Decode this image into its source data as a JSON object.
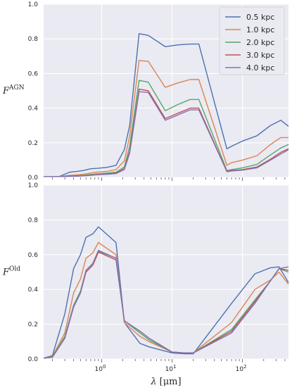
{
  "chart_data": [
    {
      "type": "line",
      "ylabel": "F",
      "ylabel_sup": "AGN",
      "xscale": "log",
      "xlim": [
        0.15,
        450
      ],
      "ylim": [
        0,
        1.0
      ],
      "yticks": [
        "0.0",
        "0.2",
        "0.4",
        "0.6",
        "0.8",
        "1.0"
      ],
      "grid": true,
      "legend_position": "top-right",
      "x": [
        0.15,
        0.2,
        0.25,
        0.35,
        0.45,
        0.55,
        0.7,
        0.85,
        1.2,
        1.6,
        2.1,
        2.5,
        3.4,
        4.6,
        8,
        12,
        18,
        24,
        60,
        70,
        100,
        160,
        250,
        350,
        450
      ],
      "series": [
        {
          "name": "0.5 kpc",
          "color": "#4c72b0",
          "values": [
            0.005,
            0.005,
            0.005,
            0.03,
            0.035,
            0.04,
            0.05,
            0.052,
            0.058,
            0.07,
            0.16,
            0.3,
            0.83,
            0.82,
            0.755,
            0.765,
            0.77,
            0.77,
            0.165,
            0.18,
            0.21,
            0.24,
            0.3,
            0.33,
            0.295
          ]
        },
        {
          "name": "1.0 kpc",
          "color": "#dd8452",
          "values": [
            0.005,
            0.005,
            0.005,
            0.012,
            0.015,
            0.018,
            0.025,
            0.03,
            0.035,
            0.045,
            0.095,
            0.24,
            0.675,
            0.67,
            0.52,
            0.545,
            0.565,
            0.565,
            0.07,
            0.085,
            0.1,
            0.125,
            0.19,
            0.23,
            0.23
          ]
        },
        {
          "name": "2.0 kpc",
          "color": "#55a868",
          "values": [
            0.005,
            0.005,
            0.005,
            0.008,
            0.01,
            0.012,
            0.017,
            0.02,
            0.025,
            0.03,
            0.06,
            0.18,
            0.56,
            0.55,
            0.385,
            0.42,
            0.45,
            0.45,
            0.04,
            0.045,
            0.055,
            0.075,
            0.13,
            0.17,
            0.19
          ]
        },
        {
          "name": "3.0 kpc",
          "color": "#c44e52",
          "values": [
            0.005,
            0.005,
            0.005,
            0.007,
            0.008,
            0.01,
            0.014,
            0.016,
            0.02,
            0.025,
            0.05,
            0.15,
            0.51,
            0.5,
            0.34,
            0.37,
            0.4,
            0.4,
            0.035,
            0.04,
            0.045,
            0.06,
            0.105,
            0.145,
            0.165
          ]
        },
        {
          "name": "4.0 kpc",
          "color": "#8172b3",
          "values": [
            0.005,
            0.005,
            0.005,
            0.006,
            0.007,
            0.009,
            0.012,
            0.015,
            0.018,
            0.022,
            0.045,
            0.14,
            0.495,
            0.49,
            0.33,
            0.36,
            0.39,
            0.39,
            0.033,
            0.037,
            0.042,
            0.055,
            0.1,
            0.135,
            0.16
          ]
        }
      ]
    },
    {
      "type": "line",
      "ylabel": "F",
      "ylabel_sup": "Old",
      "xlabel_symbol": "λ",
      "xlabel_unit": "[μm]",
      "xscale": "log",
      "xlim": [
        0.15,
        450
      ],
      "ylim": [
        0,
        1.0
      ],
      "yticks": [
        "0.0",
        "0.2",
        "0.4",
        "0.6",
        "0.8",
        "1.0"
      ],
      "xticks": [
        {
          "value": 1,
          "base": "10",
          "exp": "0"
        },
        {
          "value": 10,
          "base": "10",
          "exp": "1"
        },
        {
          "value": 100,
          "base": "10",
          "exp": "2"
        }
      ],
      "grid": true,
      "x": [
        0.15,
        0.2,
        0.3,
        0.4,
        0.5,
        0.6,
        0.75,
        0.9,
        1.6,
        2.1,
        3.5,
        4.7,
        10,
        15,
        20,
        70,
        150,
        250,
        330,
        450
      ],
      "series": [
        {
          "name": "0.5 kpc",
          "color": "#4c72b0",
          "values": [
            0.005,
            0.02,
            0.26,
            0.52,
            0.6,
            0.7,
            0.72,
            0.76,
            0.67,
            0.21,
            0.09,
            0.07,
            0.035,
            0.03,
            0.03,
            0.32,
            0.49,
            0.525,
            0.53,
            0.44
          ]
        },
        {
          "name": "1.0 kpc",
          "color": "#dd8452",
          "values": [
            0.005,
            0.015,
            0.15,
            0.38,
            0.46,
            0.58,
            0.61,
            0.67,
            0.6,
            0.21,
            0.13,
            0.1,
            0.04,
            0.035,
            0.035,
            0.21,
            0.4,
            0.455,
            0.5,
            0.43
          ]
        },
        {
          "name": "2.0 kpc",
          "color": "#55a868",
          "values": [
            0.005,
            0.012,
            0.13,
            0.31,
            0.39,
            0.51,
            0.55,
            0.62,
            0.58,
            0.22,
            0.15,
            0.11,
            0.04,
            0.035,
            0.035,
            0.17,
            0.34,
            0.45,
            0.52,
            0.5
          ]
        },
        {
          "name": "3.0 kpc",
          "color": "#c44e52",
          "values": [
            0.005,
            0.01,
            0.12,
            0.3,
            0.38,
            0.5,
            0.54,
            0.615,
            0.57,
            0.22,
            0.16,
            0.12,
            0.04,
            0.035,
            0.035,
            0.16,
            0.33,
            0.45,
            0.52,
            0.51
          ]
        },
        {
          "name": "4.0 kpc",
          "color": "#8172b3",
          "values": [
            0.005,
            0.01,
            0.12,
            0.3,
            0.38,
            0.51,
            0.55,
            0.625,
            0.58,
            0.22,
            0.16,
            0.12,
            0.04,
            0.035,
            0.035,
            0.15,
            0.32,
            0.45,
            0.52,
            0.53
          ]
        }
      ]
    }
  ]
}
